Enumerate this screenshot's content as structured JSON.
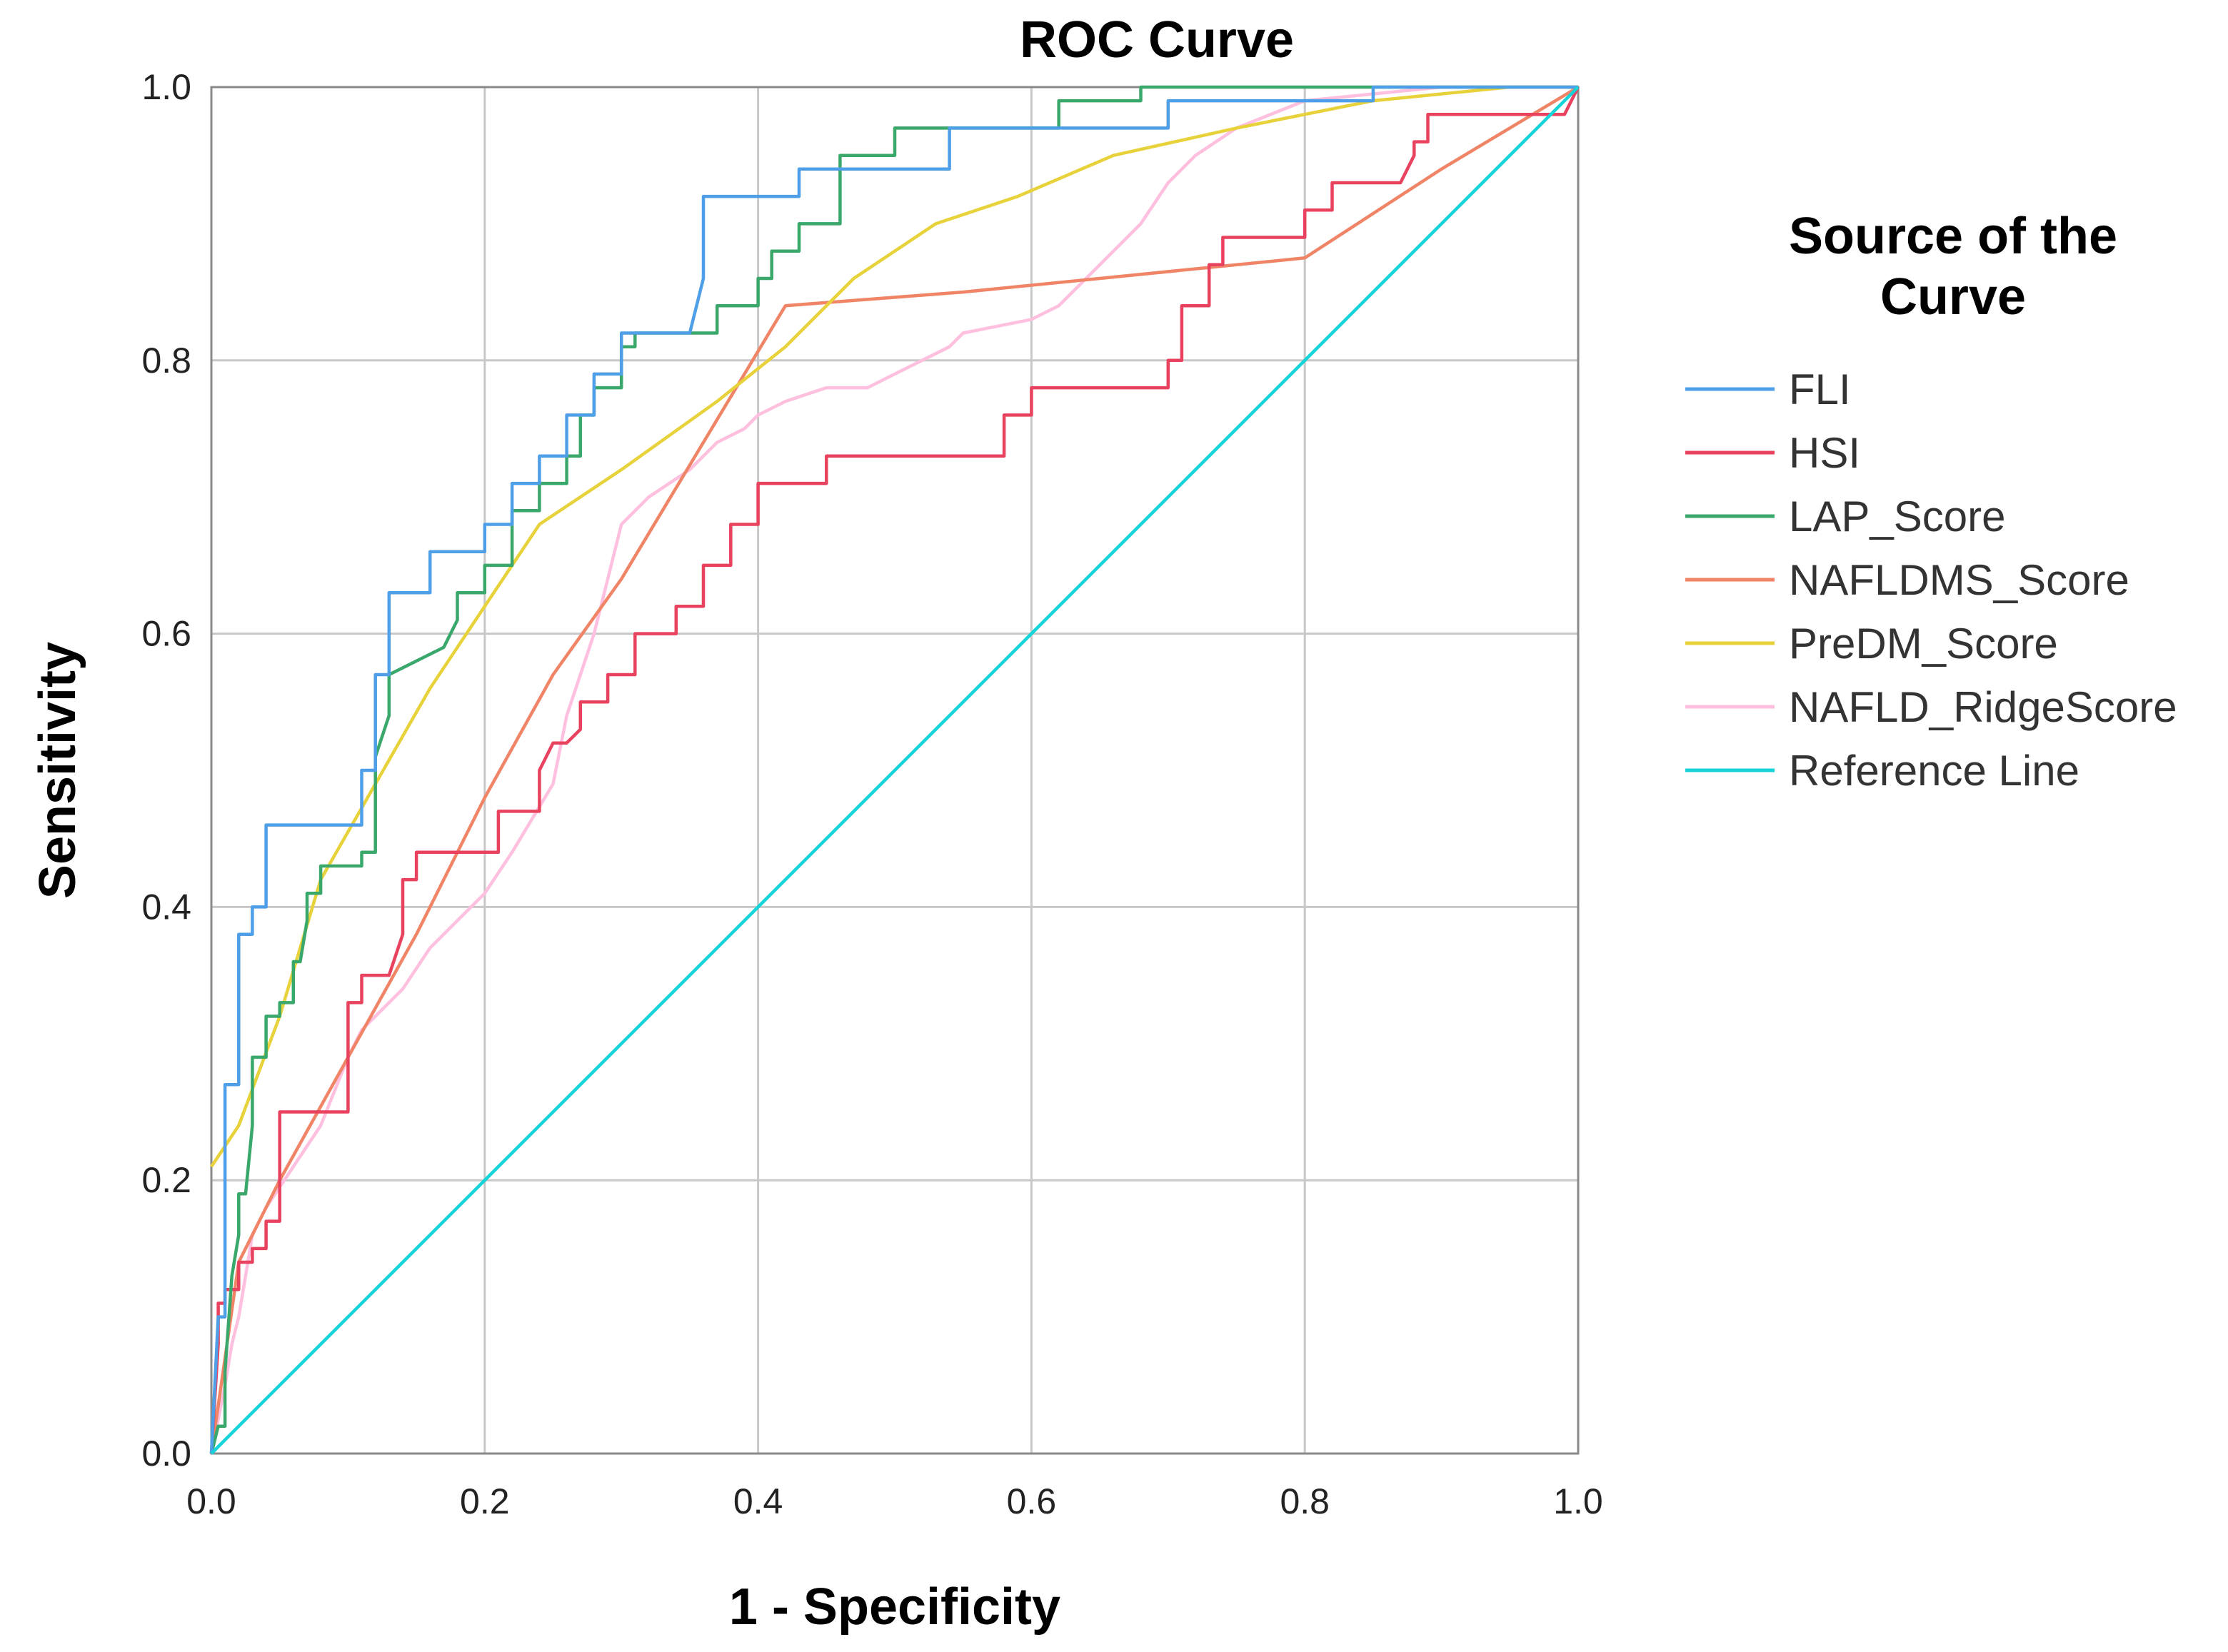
{
  "chart_data": {
    "type": "line",
    "title": "ROC Curve",
    "xlabel": "1 - Specificity",
    "ylabel": "Sensitivity",
    "xlim": [
      0,
      1
    ],
    "ylim": [
      0,
      1
    ],
    "xticks": [
      "0.0",
      "0.2",
      "0.4",
      "0.6",
      "0.8",
      "1.0"
    ],
    "yticks": [
      "0.0",
      "0.2",
      "0.4",
      "0.6",
      "0.8",
      "1.0"
    ],
    "grid": true,
    "legend_title": "Source of the Curve",
    "legend_placement": "right",
    "series": [
      {
        "name": "FLI",
        "color": "#4f9fe8",
        "x": [
          0,
          0.005,
          0.01,
          0.01,
          0.02,
          0.02,
          0.03,
          0.03,
          0.04,
          0.04,
          0.05,
          0.08,
          0.11,
          0.11,
          0.12,
          0.12,
          0.13,
          0.13,
          0.16,
          0.16,
          0.2,
          0.2,
          0.22,
          0.22,
          0.24,
          0.24,
          0.26,
          0.26,
          0.28,
          0.28,
          0.3,
          0.3,
          0.32,
          0.35,
          0.36,
          0.36,
          0.43,
          0.43,
          0.49,
          0.49,
          0.54,
          0.54,
          0.7,
          0.7,
          0.85,
          0.85,
          1.0
        ],
        "y": [
          0,
          0.1,
          0.1,
          0.27,
          0.27,
          0.38,
          0.38,
          0.4,
          0.4,
          0.46,
          0.46,
          0.46,
          0.46,
          0.5,
          0.5,
          0.57,
          0.57,
          0.63,
          0.63,
          0.66,
          0.66,
          0.68,
          0.68,
          0.71,
          0.71,
          0.73,
          0.73,
          0.76,
          0.76,
          0.79,
          0.79,
          0.82,
          0.82,
          0.82,
          0.86,
          0.92,
          0.92,
          0.94,
          0.94,
          0.94,
          0.94,
          0.97,
          0.97,
          0.99,
          0.99,
          1.0,
          1.0
        ]
      },
      {
        "name": "HSI",
        "color": "#e8425e",
        "x": [
          0,
          0.005,
          0.005,
          0.01,
          0.01,
          0.02,
          0.02,
          0.03,
          0.03,
          0.04,
          0.04,
          0.05,
          0.05,
          0.1,
          0.1,
          0.11,
          0.11,
          0.13,
          0.14,
          0.14,
          0.15,
          0.15,
          0.2,
          0.21,
          0.21,
          0.24,
          0.24,
          0.25,
          0.26,
          0.27,
          0.27,
          0.29,
          0.29,
          0.31,
          0.31,
          0.34,
          0.34,
          0.36,
          0.36,
          0.38,
          0.38,
          0.4,
          0.4,
          0.45,
          0.45,
          0.57,
          0.58,
          0.58,
          0.6,
          0.6,
          0.7,
          0.7,
          0.71,
          0.71,
          0.73,
          0.73,
          0.74,
          0.74,
          0.8,
          0.8,
          0.82,
          0.82,
          0.87,
          0.88,
          0.88,
          0.89,
          0.89,
          0.94,
          0.94,
          0.99,
          1.0
        ],
        "y": [
          0,
          0.08,
          0.11,
          0.11,
          0.12,
          0.12,
          0.14,
          0.14,
          0.15,
          0.15,
          0.17,
          0.17,
          0.25,
          0.25,
          0.33,
          0.33,
          0.35,
          0.35,
          0.38,
          0.42,
          0.42,
          0.44,
          0.44,
          0.44,
          0.47,
          0.47,
          0.5,
          0.52,
          0.52,
          0.53,
          0.55,
          0.55,
          0.57,
          0.57,
          0.6,
          0.6,
          0.62,
          0.62,
          0.65,
          0.65,
          0.68,
          0.68,
          0.71,
          0.71,
          0.73,
          0.73,
          0.73,
          0.76,
          0.76,
          0.78,
          0.78,
          0.8,
          0.8,
          0.84,
          0.84,
          0.87,
          0.87,
          0.89,
          0.89,
          0.91,
          0.91,
          0.93,
          0.93,
          0.95,
          0.96,
          0.96,
          0.98,
          0.98,
          0.98,
          0.98,
          1.0
        ]
      },
      {
        "name": "LAP_Score",
        "color": "#3aa86b",
        "x": [
          0,
          0.005,
          0.01,
          0.01,
          0.015,
          0.02,
          0.02,
          0.025,
          0.03,
          0.03,
          0.04,
          0.04,
          0.05,
          0.05,
          0.06,
          0.06,
          0.065,
          0.07,
          0.07,
          0.08,
          0.08,
          0.11,
          0.11,
          0.12,
          0.12,
          0.13,
          0.13,
          0.17,
          0.17,
          0.18,
          0.18,
          0.2,
          0.2,
          0.22,
          0.22,
          0.24,
          0.24,
          0.26,
          0.26,
          0.27,
          0.27,
          0.28,
          0.28,
          0.3,
          0.3,
          0.31,
          0.31,
          0.33,
          0.33,
          0.37,
          0.37,
          0.4,
          0.4,
          0.41,
          0.41,
          0.43,
          0.43,
          0.46,
          0.46,
          0.5,
          0.5,
          0.55,
          0.55,
          0.62,
          0.62,
          0.68,
          0.68,
          1.0
        ],
        "y": [
          0,
          0.02,
          0.02,
          0.06,
          0.13,
          0.16,
          0.19,
          0.19,
          0.24,
          0.29,
          0.29,
          0.32,
          0.32,
          0.33,
          0.33,
          0.36,
          0.36,
          0.39,
          0.41,
          0.41,
          0.43,
          0.43,
          0.44,
          0.44,
          0.51,
          0.54,
          0.57,
          0.59,
          0.59,
          0.61,
          0.63,
          0.63,
          0.65,
          0.65,
          0.69,
          0.69,
          0.71,
          0.71,
          0.73,
          0.73,
          0.76,
          0.76,
          0.78,
          0.78,
          0.81,
          0.81,
          0.82,
          0.82,
          0.82,
          0.82,
          0.84,
          0.84,
          0.86,
          0.86,
          0.88,
          0.88,
          0.9,
          0.9,
          0.95,
          0.95,
          0.97,
          0.97,
          0.97,
          0.97,
          0.99,
          0.99,
          1.0,
          1.0
        ]
      },
      {
        "name": "NAFLDMS_Score",
        "color": "#f08466",
        "x": [
          0,
          0.02,
          0.05,
          0.15,
          0.2,
          0.25,
          0.3,
          0.42,
          0.55,
          0.65,
          0.8,
          0.9,
          1.0
        ],
        "y": [
          0,
          0.14,
          0.2,
          0.38,
          0.48,
          0.57,
          0.64,
          0.84,
          0.85,
          0.86,
          0.875,
          0.94,
          1.0
        ]
      },
      {
        "name": "PreDM_Score",
        "color": "#e8d23c",
        "x": [
          0,
          0.02,
          0.05,
          0.08,
          0.12,
          0.16,
          0.2,
          0.24,
          0.3,
          0.37,
          0.42,
          0.47,
          0.53,
          0.59,
          0.66,
          0.75,
          0.85,
          0.95,
          1.0
        ],
        "y": [
          0.21,
          0.24,
          0.32,
          0.42,
          0.49,
          0.56,
          0.62,
          0.68,
          0.72,
          0.77,
          0.81,
          0.86,
          0.9,
          0.92,
          0.95,
          0.97,
          0.99,
          1.0,
          1.0
        ]
      },
      {
        "name": "NAFLD_RidgeScore",
        "color": "#ffbfdf",
        "x": [
          0,
          0.01,
          0.015,
          0.02,
          0.025,
          0.03,
          0.04,
          0.06,
          0.08,
          0.1,
          0.11,
          0.13,
          0.14,
          0.16,
          0.18,
          0.2,
          0.22,
          0.25,
          0.26,
          0.28,
          0.29,
          0.3,
          0.32,
          0.35,
          0.37,
          0.39,
          0.4,
          0.42,
          0.45,
          0.48,
          0.5,
          0.52,
          0.54,
          0.55,
          0.6,
          0.62,
          0.64,
          0.66,
          0.68,
          0.7,
          0.72,
          0.75,
          0.8,
          0.9,
          1.0
        ],
        "y": [
          0,
          0.05,
          0.08,
          0.1,
          0.13,
          0.16,
          0.18,
          0.21,
          0.24,
          0.29,
          0.31,
          0.33,
          0.34,
          0.37,
          0.39,
          0.41,
          0.44,
          0.49,
          0.54,
          0.6,
          0.64,
          0.68,
          0.7,
          0.72,
          0.74,
          0.75,
          0.76,
          0.77,
          0.78,
          0.78,
          0.79,
          0.8,
          0.81,
          0.82,
          0.83,
          0.84,
          0.86,
          0.88,
          0.9,
          0.93,
          0.95,
          0.97,
          0.99,
          1.0,
          1.0
        ]
      },
      {
        "name": "Reference Line",
        "color": "#16d3d8",
        "x": [
          0,
          1
        ],
        "y": [
          0,
          1
        ]
      }
    ]
  }
}
